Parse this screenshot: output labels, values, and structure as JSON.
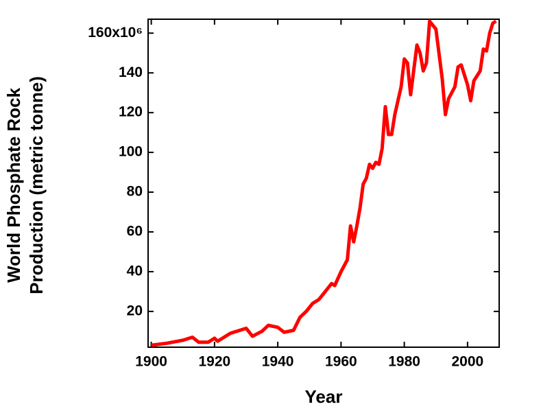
{
  "chart_data": {
    "type": "line",
    "xlabel": "Year",
    "ylabel": [
      "World Phosphate Rock",
      "Production (metric tonne)"
    ],
    "x": [
      1900,
      1905,
      1910,
      1913,
      1915,
      1918,
      1920,
      1921,
      1925,
      1930,
      1932,
      1935,
      1937,
      1940,
      1942,
      1945,
      1947,
      1949,
      1951,
      1953,
      1955,
      1957,
      1958,
      1960,
      1962,
      1963,
      1964,
      1965,
      1966,
      1967,
      1968,
      1969,
      1970,
      1971,
      1972,
      1973,
      1974,
      1975,
      1976,
      1977,
      1979,
      1980,
      1981,
      1982,
      1984,
      1985,
      1986,
      1987,
      1988,
      1990,
      1992,
      1993,
      1994,
      1996,
      1997,
      1998,
      2000,
      2001,
      2002,
      2004,
      2005,
      2006,
      2007,
      2008,
      2009
    ],
    "series": [
      {
        "color": "#ff0000",
        "values": [
          3,
          4,
          5.5,
          7,
          4.5,
          4.5,
          6.5,
          5,
          9,
          11.5,
          7.5,
          10,
          13,
          12,
          9.5,
          10.5,
          17,
          20,
          24,
          26,
          30,
          34,
          33,
          40,
          46,
          63,
          55,
          63,
          72,
          84,
          87,
          94,
          92,
          95,
          94,
          102,
          123,
          109,
          109,
          119,
          133,
          147,
          145,
          129,
          154,
          150,
          141,
          145,
          166,
          162,
          137,
          119,
          127,
          133,
          143,
          144,
          134,
          126,
          136,
          141,
          152,
          151,
          160,
          165,
          166
        ]
      }
    ],
    "xlim": [
      1899,
      2010
    ],
    "ylim": [
      2,
      167
    ],
    "xticks": [
      1900,
      1920,
      1940,
      1960,
      1980,
      2000
    ],
    "yticks": [
      20,
      40,
      60,
      80,
      100,
      120,
      140,
      {
        "value": 160,
        "label": "160x10⁶"
      }
    ]
  }
}
